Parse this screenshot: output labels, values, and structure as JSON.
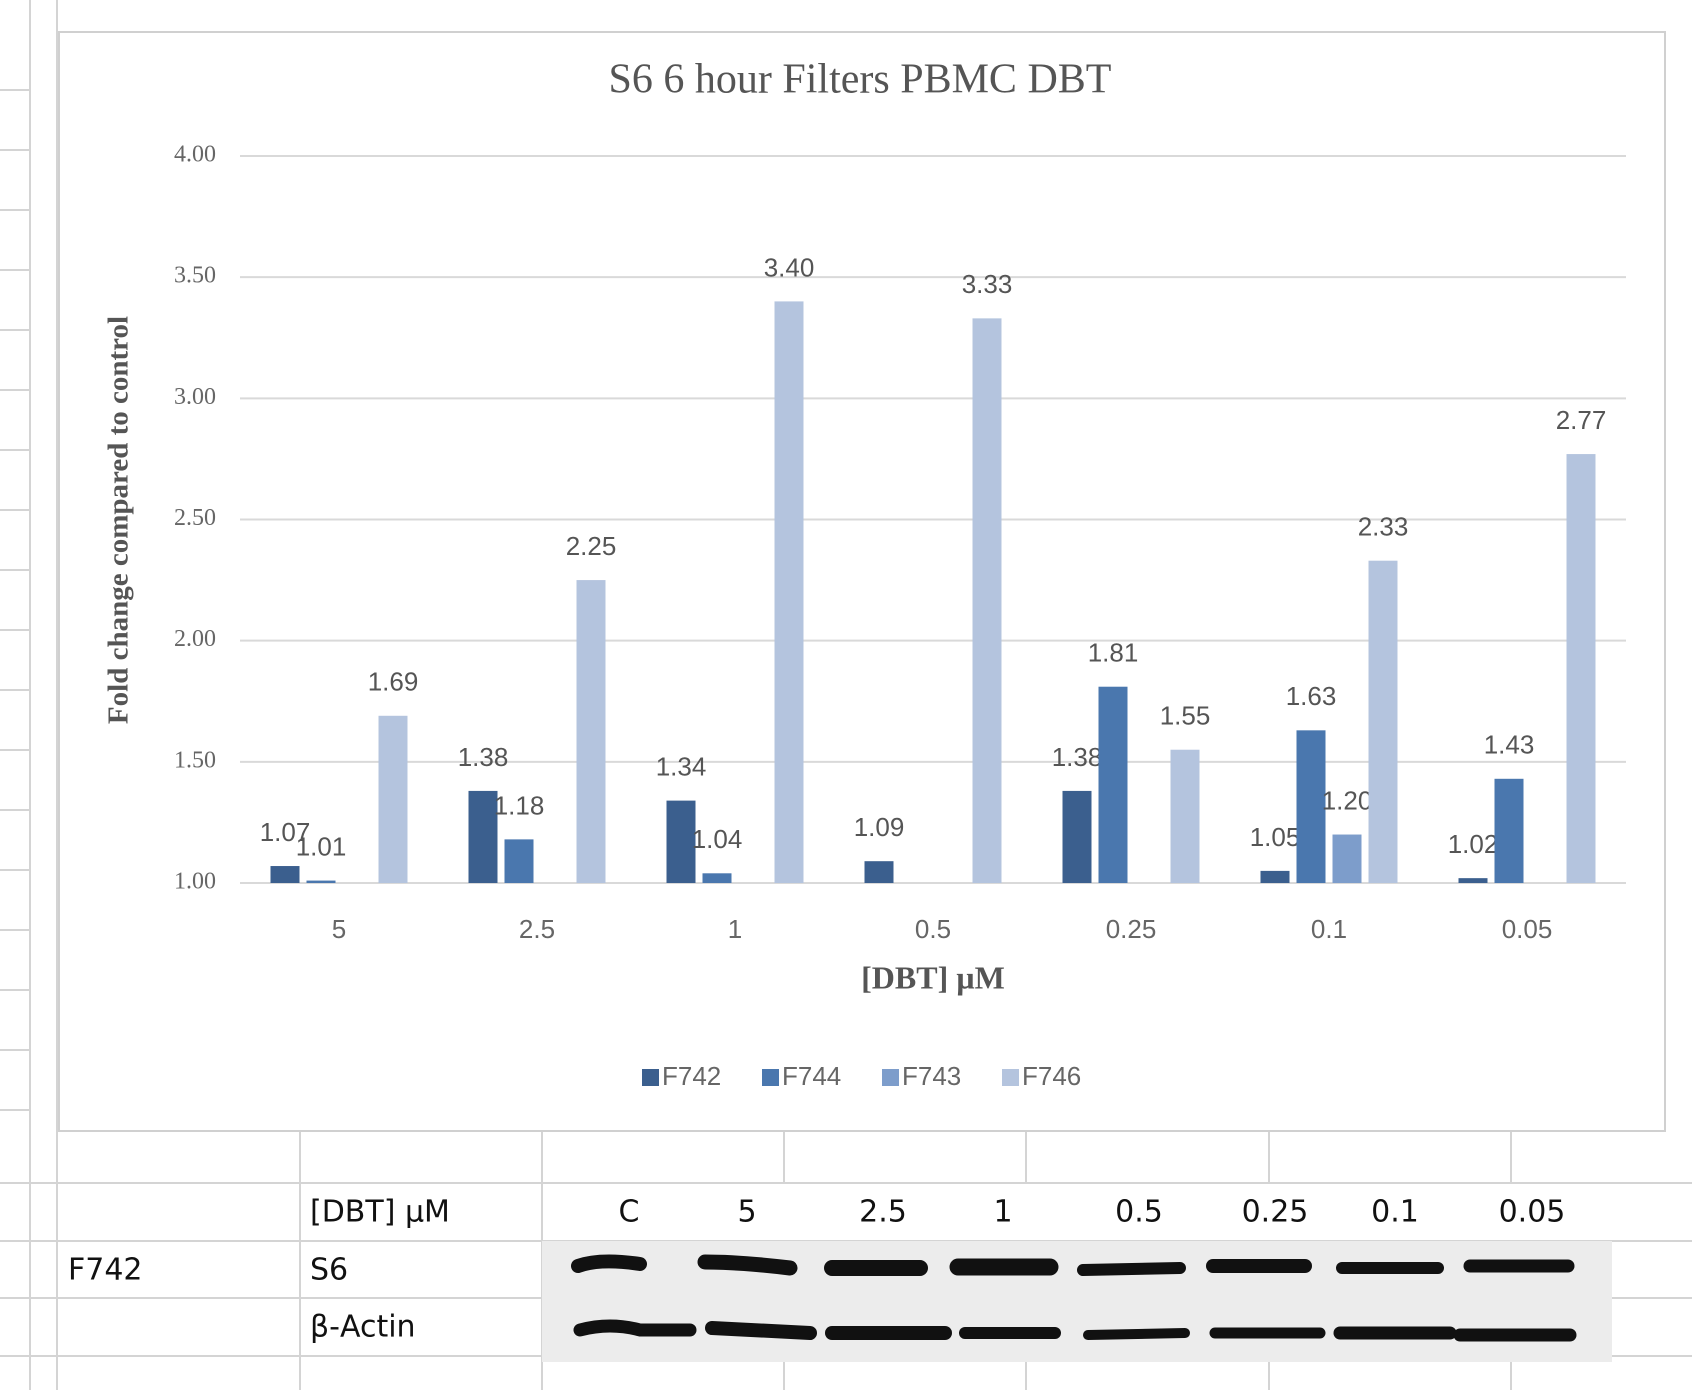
{
  "chart_data": {
    "type": "bar",
    "title": "S6 6 hour Filters PBMC DBT",
    "x_label": "[DBT] µM",
    "y_label": "Fold change compared to control",
    "categories": [
      "5",
      "2.5",
      "1",
      "0.5",
      "0.25",
      "0.1",
      "0.05"
    ],
    "series": [
      {
        "name": "F742",
        "color": "#3b5f8e",
        "values": [
          1.07,
          1.38,
          1.34,
          1.09,
          1.38,
          1.05,
          1.02
        ],
        "value_labels": [
          "1.07",
          "1.38",
          "1.34",
          "1.09",
          "1.38",
          "1.05",
          "1.02"
        ]
      },
      {
        "name": "F744",
        "color": "#4a77ae",
        "values": [
          1.01,
          1.18,
          1.04,
          null,
          1.81,
          1.63,
          1.43
        ],
        "value_labels": [
          "1.01",
          "1.18",
          "1.04",
          null,
          "1.81",
          "1.63",
          "1.43"
        ]
      },
      {
        "name": "F743",
        "color": "#7d9dcb",
        "values": [
          null,
          null,
          null,
          null,
          null,
          1.2,
          null
        ],
        "value_labels": [
          null,
          null,
          null,
          null,
          null,
          "1.20",
          null
        ]
      },
      {
        "name": "F746",
        "color": "#b4c4de",
        "values": [
          1.69,
          2.25,
          3.4,
          3.33,
          1.55,
          2.33,
          2.77
        ],
        "value_labels": [
          "1.69",
          "2.25",
          "3.40",
          "3.33",
          "1.55",
          "2.33",
          "2.77"
        ]
      }
    ],
    "ylim": [
      1,
      4
    ],
    "yticks": [
      {
        "value": 1,
        "label": "1.00"
      },
      {
        "value": 1.5,
        "label": "1.50"
      },
      {
        "value": 2,
        "label": "2.00"
      },
      {
        "value": 2.5,
        "label": "2.50"
      },
      {
        "value": 3,
        "label": "3.00"
      },
      {
        "value": 3.5,
        "label": "3.50"
      },
      {
        "value": 4,
        "label": "4.00"
      }
    ],
    "grid": true,
    "legend": "bottom"
  },
  "table": {
    "header": [
      "[DBT] µM",
      "C",
      "5",
      "2.5",
      "1",
      "0.5",
      "0.25",
      "0.1",
      "0.05"
    ],
    "rows": [
      [
        "F742",
        "S6"
      ],
      [
        "β-Actin"
      ]
    ]
  }
}
